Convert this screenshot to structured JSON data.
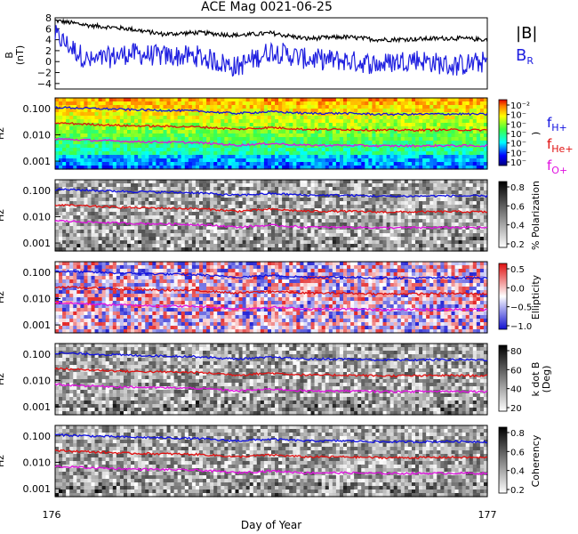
{
  "title": "ACE Mag 0021-06-25",
  "xlabel": "Day of Year",
  "x_ticks": [
    "176",
    "177"
  ],
  "legend_top": {
    "b_total": "|B|",
    "b_r": "B",
    "b_r_sub": "R"
  },
  "colors": {
    "b_total": "#000000",
    "b_r": "#2020e0",
    "h": "#1010e0",
    "he": "#e01010",
    "o": "#e010e0"
  },
  "freq_labels": {
    "h": "f",
    "h_sub": "H+",
    "he": "f",
    "he_sub": "He+",
    "o": "f",
    "o_sub": "O+"
  },
  "chart_data": [
    {
      "type": "line",
      "ylabel": "B",
      "ylabel_unit": "(nT)",
      "yticks": [
        "8",
        "6",
        "4",
        "2",
        "0",
        "−2",
        "−4"
      ],
      "ylim": [
        -5,
        8
      ],
      "x": [
        176.0,
        176.08,
        176.17,
        176.25,
        176.33,
        176.42,
        176.5,
        176.58,
        176.67,
        176.75,
        176.83,
        176.92,
        177.0
      ],
      "series": [
        {
          "name": "|B|",
          "values": [
            7.5,
            6.6,
            6.0,
            5.0,
            5.3,
            4.8,
            5.2,
            4.2,
            4.5,
            4.0,
            4.1,
            4.3,
            4.0
          ]
        },
        {
          "name": "BR",
          "values": [
            4.8,
            0.0,
            1.5,
            1.0,
            1.0,
            -1.0,
            2.0,
            0.5,
            0.2,
            -0.5,
            0.5,
            -0.8,
            0.0
          ]
        }
      ]
    },
    {
      "type": "heatmap",
      "ylabel": "Hz",
      "colorbar_label": ")",
      "colorbar_ticks": [
        "10⁻²",
        "10⁻",
        "10⁻",
        "10⁻",
        "10⁻",
        "10⁻",
        "10⁻"
      ],
      "yticks": [
        "0.100",
        "0.010",
        "0.001"
      ]
    },
    {
      "type": "heatmap",
      "ylabel": "Hz",
      "colorbar_label": "% Polarization",
      "colorbar_ticks": [
        "0.8",
        "0.6",
        "0.4",
        "0.2"
      ],
      "yticks": [
        "0.100",
        "0.010",
        "0.001"
      ]
    },
    {
      "type": "heatmap",
      "ylabel": "Hz",
      "colorbar_label": "Ellipticity",
      "colorbar_ticks": [
        "0.5",
        "0.0",
        "−0.5",
        "−1.0"
      ],
      "yticks": [
        "0.100",
        "0.010",
        "0.001"
      ]
    },
    {
      "type": "heatmap",
      "ylabel": "Hz",
      "colorbar_label": "k dot B",
      "colorbar_label2": "(Deg)",
      "colorbar_ticks": [
        "80",
        "60",
        "40",
        "20"
      ],
      "yticks": [
        "0.100",
        "0.010",
        "0.001"
      ]
    },
    {
      "type": "heatmap",
      "ylabel": "Hz",
      "colorbar_label": "Coherency",
      "colorbar_ticks": [
        "0.8",
        "0.6",
        "0.4",
        "0.2"
      ],
      "yticks": [
        "0.100",
        "0.010",
        "0.001"
      ]
    }
  ],
  "gyro_lines": {
    "x": [
      176.0,
      176.08,
      176.17,
      176.25,
      176.33,
      176.38,
      176.42,
      176.5,
      176.58,
      176.67,
      176.75,
      176.83,
      176.92,
      177.0
    ],
    "h": [
      0.11,
      0.1,
      0.09,
      0.085,
      0.08,
      0.07,
      0.065,
      0.075,
      0.065,
      0.065,
      0.06,
      0.06,
      0.062,
      0.06
    ],
    "he": [
      0.028,
      0.025,
      0.022,
      0.021,
      0.02,
      0.018,
      0.016,
      0.019,
      0.016,
      0.016,
      0.015,
      0.015,
      0.0155,
      0.015
    ],
    "o": [
      0.007,
      0.0062,
      0.0056,
      0.0053,
      0.005,
      0.0045,
      0.004,
      0.0047,
      0.004,
      0.004,
      0.0038,
      0.0038,
      0.0039,
      0.0038
    ]
  }
}
